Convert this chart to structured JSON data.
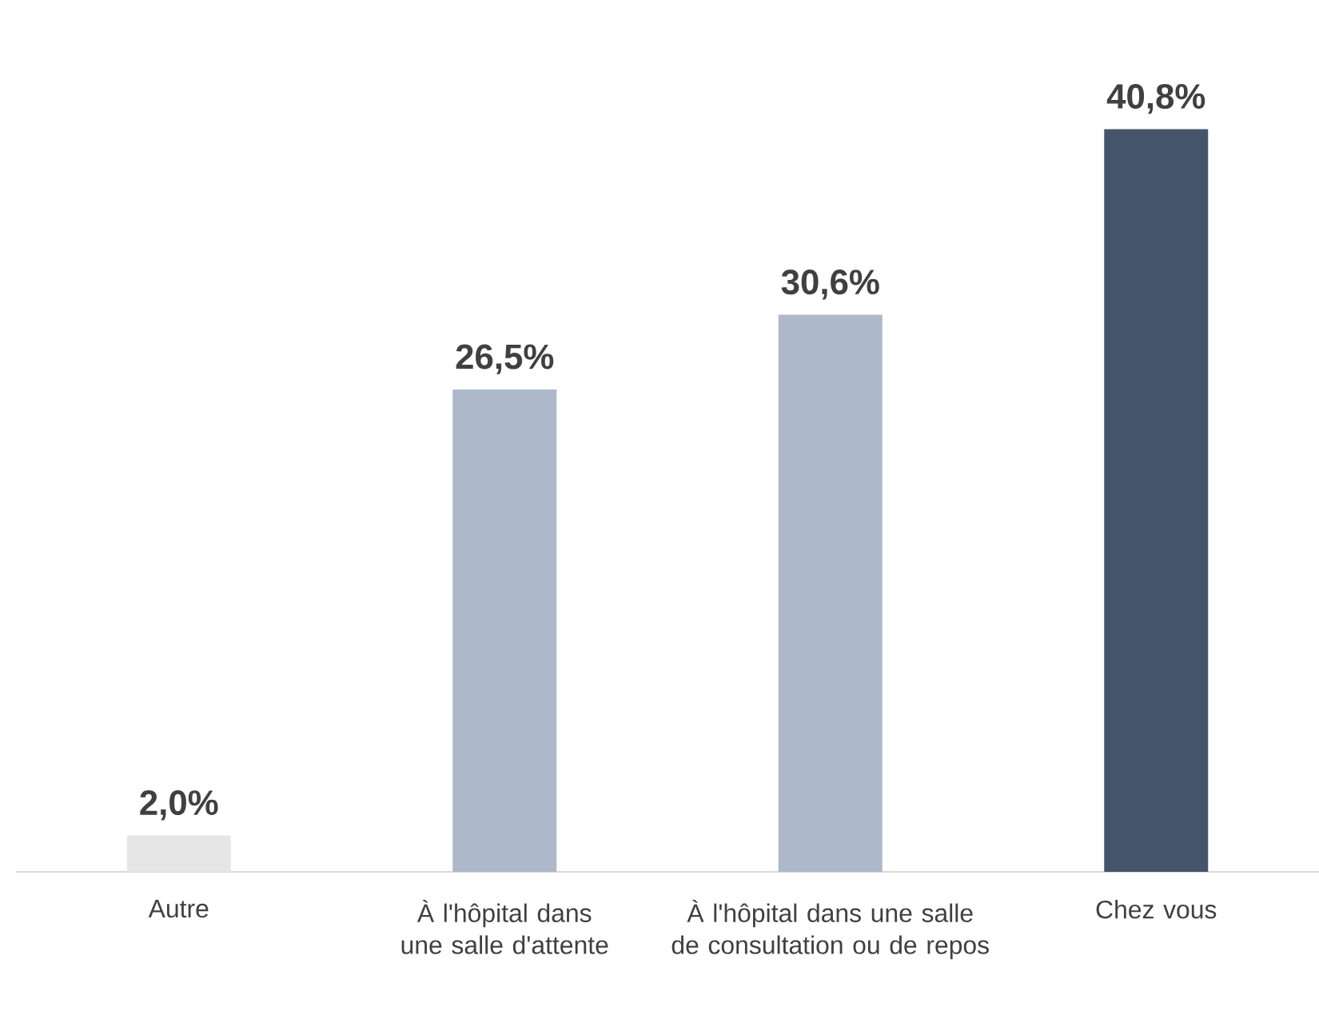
{
  "chart_data": {
    "type": "bar",
    "categories": [
      "Autre",
      "À l'hôpital dans une salle d'attente",
      "À l'hôpital dans une salle de consultation ou de repos",
      "Chez vous"
    ],
    "values": [
      2.0,
      26.5,
      30.6,
      40.8
    ],
    "value_labels": [
      "2,0%",
      "26,5%",
      "30,6%",
      "40,8%"
    ],
    "colors": [
      "#e7e6e6",
      "#adb9ca",
      "#adb9ca",
      "#44546a"
    ]
  }
}
